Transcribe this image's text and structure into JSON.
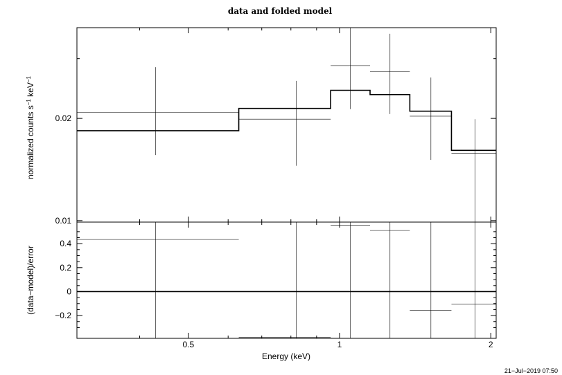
{
  "chart_data": [
    {
      "type": "step",
      "title": "data and folded model",
      "ylabel": "normalized counts s-1 keV-1",
      "ylabel_parts": [
        "normalized counts s",
        "−1",
        " keV",
        "−1"
      ],
      "xscale": "log",
      "yscale": "log",
      "xlim": [
        0.3,
        2.05
      ],
      "ylim": [
        0.0099,
        0.037
      ],
      "y_tick_labels": [
        "0.01",
        "0.02"
      ],
      "y_ticks": [
        0.01,
        0.02
      ],
      "series": [
        {
          "role": "data",
          "points": [
            {
              "xlo": 0.3,
              "xhi": 0.63,
              "x": 0.43,
              "y": 0.0208,
              "ylo": 0.0156,
              "yhi": 0.0283
            },
            {
              "xlo": 0.63,
              "xhi": 0.96,
              "x": 0.82,
              "y": 0.0199,
              "ylo": 0.0145,
              "yhi": 0.0258
            },
            {
              "xlo": 0.96,
              "xhi": 1.15,
              "x": 1.05,
              "y": 0.0286,
              "ylo": 0.0213,
              "yhi": 0.038
            },
            {
              "xlo": 1.15,
              "xhi": 1.38,
              "x": 1.26,
              "y": 0.0275,
              "ylo": 0.0206,
              "yhi": 0.0355
            },
            {
              "xlo": 1.38,
              "xhi": 1.67,
              "x": 1.52,
              "y": 0.0203,
              "ylo": 0.0151,
              "yhi": 0.0264
            },
            {
              "xlo": 1.67,
              "xhi": 2.05,
              "x": 1.86,
              "y": 0.0158,
              "ylo": 0.0099,
              "yhi": 0.0199
            }
          ]
        },
        {
          "role": "folded model",
          "bins": [
            {
              "xlo": 0.3,
              "xhi": 0.63,
              "y": 0.0184
            },
            {
              "xlo": 0.63,
              "xhi": 0.96,
              "y": 0.0214
            },
            {
              "xlo": 0.96,
              "xhi": 1.15,
              "y": 0.0242
            },
            {
              "xlo": 1.15,
              "xhi": 1.38,
              "y": 0.0235
            },
            {
              "xlo": 1.38,
              "xhi": 1.67,
              "y": 0.021
            },
            {
              "xlo": 1.67,
              "xhi": 2.05,
              "y": 0.0161
            }
          ]
        }
      ]
    },
    {
      "type": "residual",
      "xlabel": "Energy (keV)",
      "ylabel": "(data−model)/error",
      "xscale": "log",
      "xlim": [
        0.3,
        2.05
      ],
      "ylim": [
        -0.39,
        0.58
      ],
      "x_ticks": [
        0.5,
        1,
        2
      ],
      "x_tick_labels": [
        "0.5",
        "1",
        "2"
      ],
      "y_ticks": [
        -0.2,
        0,
        0.2,
        0.4
      ],
      "y_tick_labels": [
        "−0.2",
        "0",
        "0.2",
        "0.4"
      ],
      "zero_line": 0,
      "points": [
        {
          "xlo": 0.3,
          "xhi": 0.63,
          "x": 0.43,
          "y": 0.435,
          "err": 1.0
        },
        {
          "xlo": 0.63,
          "xhi": 0.96,
          "x": 0.82,
          "y": -0.38,
          "err": 1.0
        },
        {
          "xlo": 0.96,
          "xhi": 1.15,
          "x": 1.05,
          "y": 0.555,
          "err": 1.0
        },
        {
          "xlo": 1.15,
          "xhi": 1.38,
          "x": 1.26,
          "y": 0.51,
          "err": 1.0
        },
        {
          "xlo": 1.38,
          "xhi": 1.67,
          "x": 1.52,
          "y": -0.155,
          "err": 1.0
        },
        {
          "xlo": 1.67,
          "xhi": 2.05,
          "x": 1.86,
          "y": -0.105,
          "err": 1.0
        }
      ]
    }
  ],
  "timestamp": "21−Jul−2019 07:50"
}
